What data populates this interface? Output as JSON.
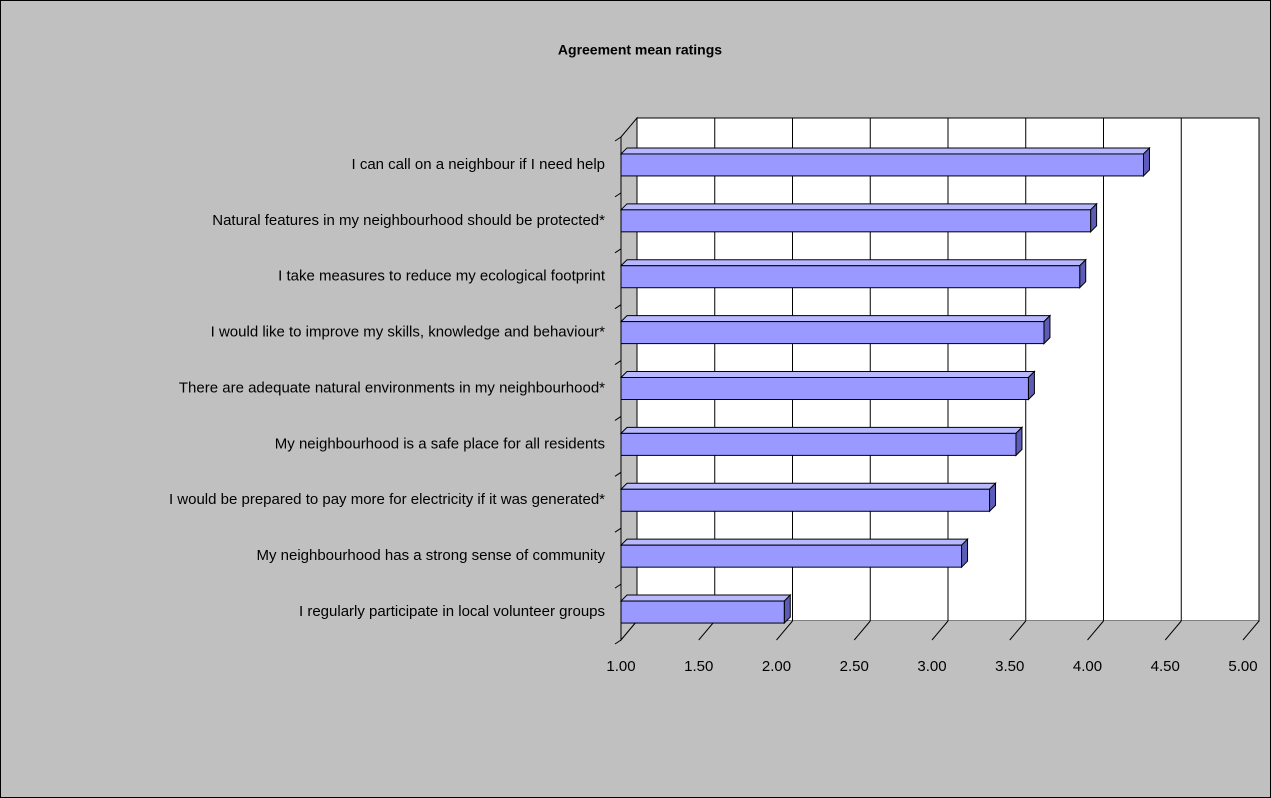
{
  "chart_data": {
    "type": "bar",
    "orientation": "horizontal",
    "title": "Agreement mean ratings",
    "categories": [
      "I can call on a neighbour if I need help",
      "Natural features in my neighbourhood should be protected*",
      "I take measures to reduce my ecological footprint",
      "I would like to improve my skills, knowledge and behaviour*",
      "There are adequate natural environments in my neighbourhood*",
      "My neighbourhood is a safe place for all residents",
      "I would be prepared to pay more for electricity if it was generated*",
      "My neighbourhood has a strong sense of community",
      "I regularly participate in local volunteer groups"
    ],
    "values": [
      4.36,
      4.02,
      3.95,
      3.72,
      3.62,
      3.54,
      3.37,
      3.19,
      2.05
    ],
    "color": "#9999ff",
    "xlim": [
      1,
      5
    ],
    "xticks": [
      {
        "value": 1,
        "label": "1.00"
      },
      {
        "value": 1.5,
        "label": "1.50"
      },
      {
        "value": 2,
        "label": "2.00"
      },
      {
        "value": 2.5,
        "label": "2.50"
      },
      {
        "value": 3,
        "label": "3.00"
      },
      {
        "value": 3.5,
        "label": "3.50"
      },
      {
        "value": 4,
        "label": "4.00"
      },
      {
        "value": 4.5,
        "label": "4.50"
      },
      {
        "value": 5,
        "label": "5.00"
      }
    ],
    "grid": true
  }
}
